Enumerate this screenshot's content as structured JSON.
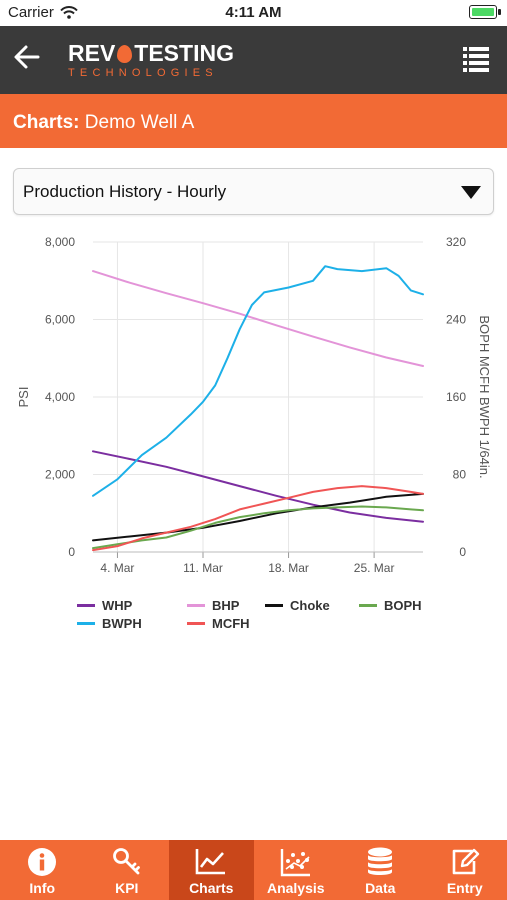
{
  "status_bar": {
    "carrier": "Carrier",
    "time": "4:11 AM"
  },
  "header": {
    "logo_main_left": "REV",
    "logo_main_right": "TESTING",
    "logo_sub": "TECHNOLOGIES"
  },
  "title_bar": {
    "prefix": "Charts:",
    "well": "Demo Well A"
  },
  "selector": {
    "value": "Production History - Hourly"
  },
  "chart_data": {
    "type": "line",
    "left_axis": {
      "label": "PSI",
      "min": 0,
      "max": 8000,
      "ticks": [
        "0",
        "2,000",
        "4,000",
        "6,000",
        "8,000"
      ]
    },
    "right_axis": {
      "label": "BOPH MCFH BWPH 1/64in.",
      "min": 0,
      "max": 320,
      "ticks": [
        "0",
        "80",
        "160",
        "240",
        "320"
      ]
    },
    "x_axis": {
      "ticks": [
        "4. Mar",
        "11. Mar",
        "18. Mar",
        "25. Mar"
      ],
      "tick_days": [
        4,
        11,
        18,
        25
      ],
      "start_day": 2,
      "end_day": 29
    },
    "series": [
      {
        "name": "WHP",
        "axis": "left",
        "color": "#7b2ea0",
        "x": [
          2,
          5,
          8,
          11,
          14,
          17,
          20,
          23,
          26,
          29
        ],
        "y": [
          2600,
          2400,
          2200,
          1950,
          1700,
          1450,
          1220,
          1020,
          880,
          780
        ]
      },
      {
        "name": "BHP",
        "axis": "left",
        "color": "#e394d8",
        "x": [
          2,
          5,
          8,
          11,
          14,
          17,
          20,
          23,
          26,
          29
        ],
        "y": [
          7250,
          6950,
          6680,
          6420,
          6150,
          5850,
          5560,
          5280,
          5020,
          4800
        ]
      },
      {
        "name": "Choke",
        "axis": "right",
        "color": "#111111",
        "x": [
          2,
          5,
          8,
          11,
          14,
          17,
          20,
          23,
          26,
          29
        ],
        "y": [
          12,
          16,
          20,
          25,
          32,
          40,
          46,
          51,
          57,
          60
        ]
      },
      {
        "name": "BOPH",
        "axis": "right",
        "color": "#6aa84f",
        "x": [
          2,
          4,
          6,
          8,
          10,
          12,
          14,
          16,
          18,
          20,
          22,
          24,
          26,
          28,
          29
        ],
        "y": [
          4,
          8,
          12,
          15,
          22,
          30,
          36,
          40,
          43,
          45,
          46,
          47,
          46,
          44,
          43
        ]
      },
      {
        "name": "BWPH",
        "axis": "right",
        "color": "#1db0e8",
        "x": [
          2,
          4,
          6,
          8,
          10,
          11,
          12,
          13,
          14,
          15,
          16,
          18,
          20,
          21,
          22,
          24,
          26,
          27,
          28,
          29
        ],
        "y": [
          58,
          75,
          100,
          118,
          142,
          155,
          172,
          200,
          230,
          255,
          268,
          273,
          280,
          295,
          292,
          290,
          293,
          285,
          270,
          266
        ]
      },
      {
        "name": "MCFH",
        "axis": "right",
        "color": "#f05555",
        "x": [
          2,
          4,
          6,
          8,
          10,
          12,
          14,
          16,
          18,
          20,
          22,
          24,
          26,
          28,
          29
        ],
        "y": [
          2,
          6,
          14,
          20,
          26,
          34,
          44,
          50,
          56,
          62,
          66,
          68,
          66,
          62,
          60
        ]
      }
    ]
  },
  "legend": [
    "WHP",
    "BHP",
    "Choke",
    "BOPH",
    "BWPH",
    "MCFH"
  ],
  "tabs": [
    {
      "label": "Info",
      "icon": "info-icon"
    },
    {
      "label": "KPI",
      "icon": "key-icon"
    },
    {
      "label": "Charts",
      "icon": "chart-line-icon"
    },
    {
      "label": "Analysis",
      "icon": "analysis-icon"
    },
    {
      "label": "Data",
      "icon": "database-icon"
    },
    {
      "label": "Entry",
      "icon": "edit-icon"
    }
  ],
  "colors": {
    "brand": "#f26a35",
    "header": "#3a3a3a",
    "active_tab": "#c9471a"
  }
}
